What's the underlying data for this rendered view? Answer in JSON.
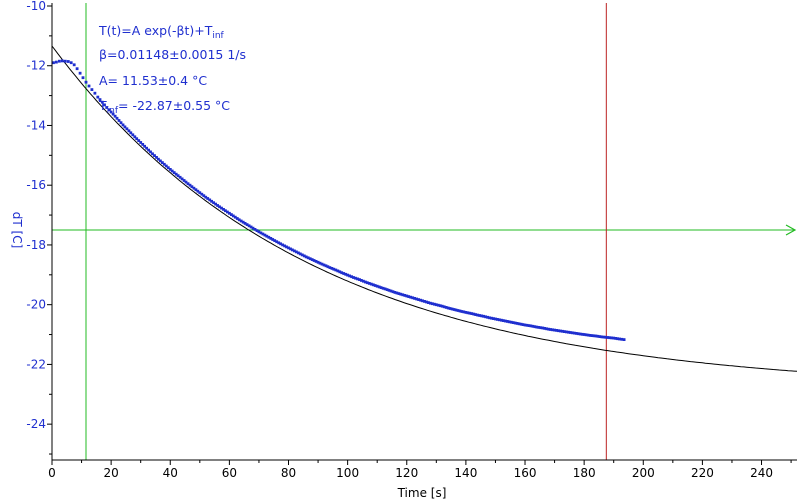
{
  "chart_data": {
    "type": "scatter",
    "xlabel": "Time [s]",
    "ylabel": "dT [C]",
    "xlim": [
      0,
      252
    ],
    "ylim": [
      -25.2,
      -9.9
    ],
    "x_ticks": [
      "0",
      "20",
      "40",
      "60",
      "80",
      "100",
      "120",
      "140",
      "160",
      "180",
      "200",
      "220",
      "240"
    ],
    "y_ticks": [
      "-10",
      "-12",
      "-14",
      "-16",
      "-18",
      "-20",
      "-22",
      "-24"
    ],
    "annotations": {
      "formula": "T(t)=A exp(-βt)+T",
      "formula_sub": "inf",
      "beta": "β=0.01148±0.0015 1/s",
      "a_value": "A= 11.53±0.4 °C",
      "tinf_prefix": "T",
      "tinf_sub": "inf",
      "tinf_value": "= -22.87±0.55 °C"
    },
    "fit": {
      "A": 11.53,
      "beta": 0.01148,
      "T_inf": -22.87,
      "color": "#000000"
    },
    "measured": {
      "color": "#1f2fcf",
      "points": [
        [
          0.5,
          -11.9
        ],
        [
          1.5,
          -11.88
        ],
        [
          2.5,
          -11.85
        ],
        [
          3.5,
          -11.84
        ],
        [
          4.5,
          -11.85
        ],
        [
          5.5,
          -11.86
        ],
        [
          6.5,
          -11.9
        ],
        [
          7.5,
          -11.97
        ],
        [
          8.5,
          -12.1
        ],
        [
          9.5,
          -12.25
        ],
        [
          10.5,
          -12.4
        ],
        [
          11.5,
          -12.55
        ],
        [
          12.5,
          -12.68
        ],
        [
          13.5,
          -12.8
        ],
        [
          14.5,
          -12.92
        ],
        [
          15.5,
          -13.05
        ],
        [
          17,
          -13.22
        ],
        [
          18.5,
          -13.4
        ],
        [
          20,
          -13.55
        ],
        [
          22,
          -13.76
        ],
        [
          24,
          -13.98
        ],
        [
          26,
          -14.18
        ],
        [
          28,
          -14.38
        ],
        [
          30,
          -14.57
        ],
        [
          32,
          -14.76
        ],
        [
          34,
          -14.95
        ],
        [
          36,
          -15.13
        ],
        [
          38,
          -15.3
        ],
        [
          40,
          -15.47
        ],
        [
          42,
          -15.63
        ],
        [
          44,
          -15.79
        ],
        [
          46,
          -15.95
        ],
        [
          48,
          -16.1
        ],
        [
          50,
          -16.25
        ],
        [
          52,
          -16.4
        ],
        [
          54,
          -16.54
        ],
        [
          56,
          -16.68
        ],
        [
          58,
          -16.81
        ],
        [
          60,
          -16.94
        ],
        [
          62,
          -17.07
        ],
        [
          64,
          -17.2
        ],
        [
          66,
          -17.32
        ],
        [
          68,
          -17.44
        ],
        [
          70,
          -17.56
        ],
        [
          72,
          -17.67
        ],
        [
          74,
          -17.78
        ],
        [
          76,
          -17.89
        ],
        [
          78,
          -18.0
        ],
        [
          80,
          -18.1
        ],
        [
          82,
          -18.2
        ],
        [
          84,
          -18.3
        ],
        [
          86,
          -18.4
        ],
        [
          88,
          -18.49
        ],
        [
          90,
          -18.58
        ],
        [
          92,
          -18.67
        ],
        [
          94,
          -18.76
        ],
        [
          96,
          -18.84
        ],
        [
          98,
          -18.93
        ],
        [
          100,
          -19.01
        ],
        [
          102,
          -19.09
        ],
        [
          104,
          -19.16
        ],
        [
          106,
          -19.24
        ],
        [
          108,
          -19.31
        ],
        [
          110,
          -19.38
        ],
        [
          112,
          -19.45
        ],
        [
          114,
          -19.52
        ],
        [
          116,
          -19.59
        ],
        [
          118,
          -19.65
        ],
        [
          120,
          -19.71
        ],
        [
          122,
          -19.77
        ],
        [
          124,
          -19.83
        ],
        [
          126,
          -19.89
        ],
        [
          128,
          -19.95
        ],
        [
          130,
          -20.0
        ],
        [
          132,
          -20.05
        ],
        [
          134,
          -20.11
        ],
        [
          136,
          -20.16
        ],
        [
          138,
          -20.21
        ],
        [
          140,
          -20.26
        ],
        [
          142,
          -20.3
        ],
        [
          144,
          -20.35
        ],
        [
          146,
          -20.39
        ],
        [
          148,
          -20.44
        ],
        [
          150,
          -20.48
        ],
        [
          152,
          -20.52
        ],
        [
          154,
          -20.56
        ],
        [
          156,
          -20.6
        ],
        [
          158,
          -20.64
        ],
        [
          160,
          -20.68
        ],
        [
          162,
          -20.71
        ],
        [
          164,
          -20.75
        ],
        [
          166,
          -20.78
        ],
        [
          168,
          -20.82
        ],
        [
          170,
          -20.85
        ],
        [
          172,
          -20.88
        ],
        [
          174,
          -20.91
        ],
        [
          176,
          -20.94
        ],
        [
          178,
          -20.97
        ],
        [
          180,
          -21.0
        ],
        [
          182,
          -21.03
        ],
        [
          184,
          -21.05
        ],
        [
          186,
          -21.08
        ],
        [
          188,
          -21.1
        ],
        [
          190,
          -21.12
        ],
        [
          192,
          -21.15
        ],
        [
          193.5,
          -21.17
        ]
      ]
    },
    "cursors": {
      "green_x": 11.5,
      "green_y": -17.5,
      "green_color": "#22bb22",
      "red_x": 187.5,
      "red_color": "#bb2222"
    }
  }
}
